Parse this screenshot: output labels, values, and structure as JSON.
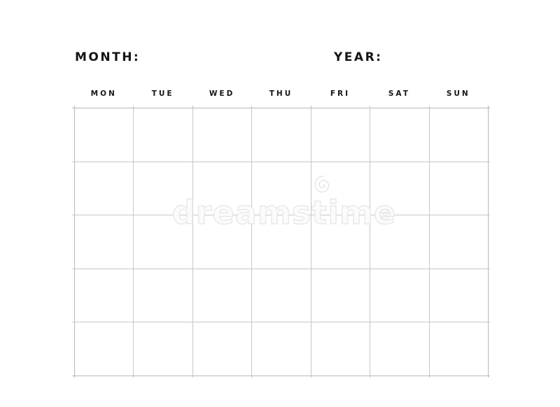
{
  "page": {
    "background": "#ffffff"
  },
  "planner": {
    "month_label": "MONTH:",
    "year_label": "YEAR:",
    "day_headers": [
      "MON",
      "TUE",
      "WED",
      "THU",
      "FRI",
      "SAT",
      "SUN"
    ],
    "grid": {
      "rows": 5,
      "columns": 7
    },
    "colors": {
      "label_text": "#141414",
      "grid_line": "#c7c7c7",
      "grid_border": "#b7b7b7"
    }
  },
  "watermark": {
    "text": "dreamstime",
    "logo_icon": "spiral-icon",
    "end_mark_icon": "ring-icon",
    "color": "#e5e5e5"
  }
}
